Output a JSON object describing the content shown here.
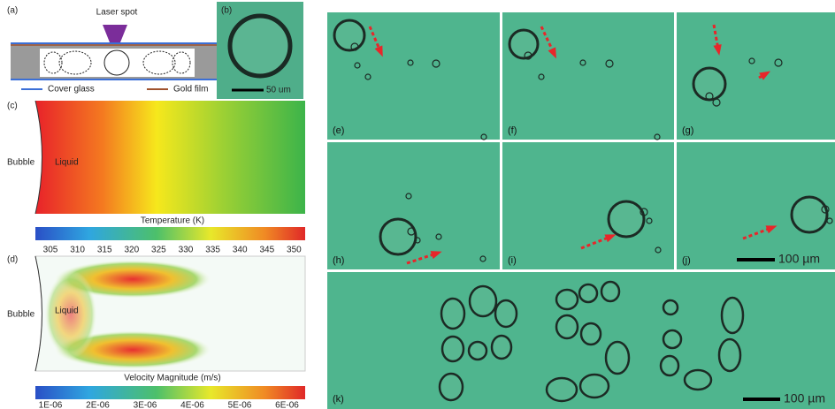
{
  "a": {
    "label": "(a)",
    "laser": "Laser spot",
    "legend": [
      {
        "label": "Cover glass",
        "color": "#3b6fd6"
      },
      {
        "label": "Gold film",
        "color": "#a0522d"
      }
    ]
  },
  "b": {
    "label": "(b)",
    "scale_bar": "50 um"
  },
  "c": {
    "label": "(c)",
    "bubble": "Bubble",
    "liquid": "Liquid",
    "colorbar_title": "Temperature (K)",
    "colorbar_ticks": [
      305,
      310,
      315,
      320,
      325,
      330,
      335,
      340,
      345,
      350
    ]
  },
  "d": {
    "label": "(d)",
    "bubble": "Bubble",
    "liquid": "Liquid",
    "colorbar_title": "Velocity Magnitude (m/s)",
    "colorbar_ticks": [
      "1E-06",
      "2E-06",
      "3E-06",
      "4E-06",
      "5E-06",
      "6E-06"
    ]
  },
  "frames": [
    "(e)",
    "(f)",
    "(g)",
    "(h)",
    "(i)",
    "(j)",
    "(k)"
  ],
  "scale_bar": "100 µm"
}
